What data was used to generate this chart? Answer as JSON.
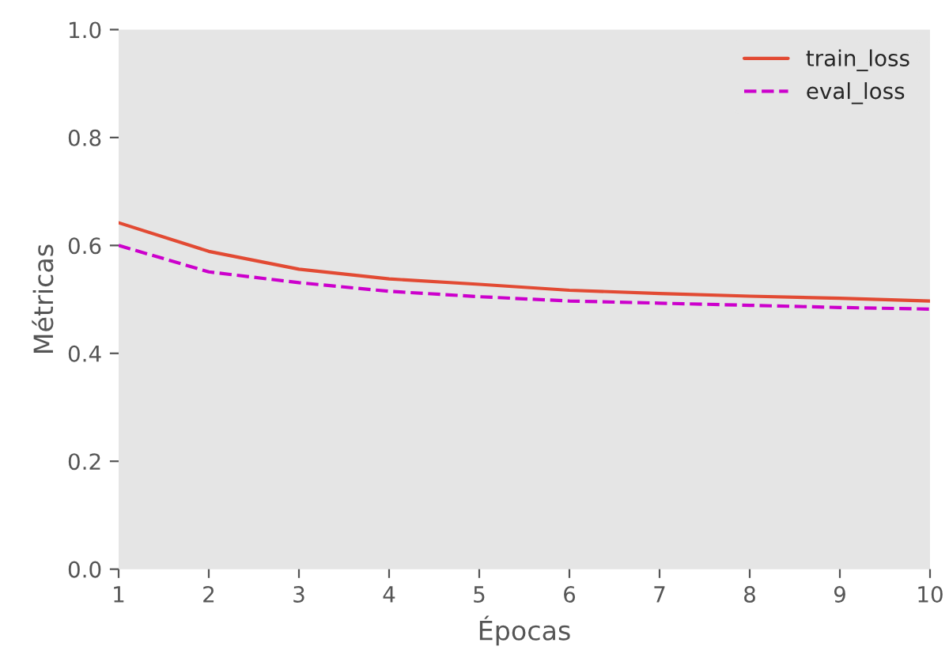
{
  "chart_data": {
    "type": "line",
    "xlabel": "Épocas",
    "ylabel": "Métricas",
    "x": [
      1,
      2,
      3,
      4,
      5,
      6,
      7,
      8,
      9,
      10
    ],
    "series": [
      {
        "name": "train_loss",
        "color": "#e24a33",
        "line_style": "solid",
        "values": [
          0.642,
          0.589,
          0.556,
          0.538,
          0.528,
          0.517,
          0.511,
          0.506,
          0.502,
          0.497
        ]
      },
      {
        "name": "eval_loss",
        "color": "#cc00cc",
        "line_style": "dashed",
        "values": [
          0.6,
          0.551,
          0.531,
          0.515,
          0.505,
          0.497,
          0.493,
          0.489,
          0.485,
          0.482
        ]
      }
    ],
    "xlim": [
      1,
      10
    ],
    "xticks": [
      1,
      2,
      3,
      4,
      5,
      6,
      7,
      8,
      9,
      10
    ],
    "ylim": [
      0.0,
      1.0
    ],
    "yticks": [
      {
        "value": 0,
        "label": "0.0"
      },
      0.2,
      0.4,
      0.6,
      0.8,
      {
        "value": 1,
        "label": "1.0"
      }
    ],
    "grid": false,
    "legend": "top right"
  }
}
